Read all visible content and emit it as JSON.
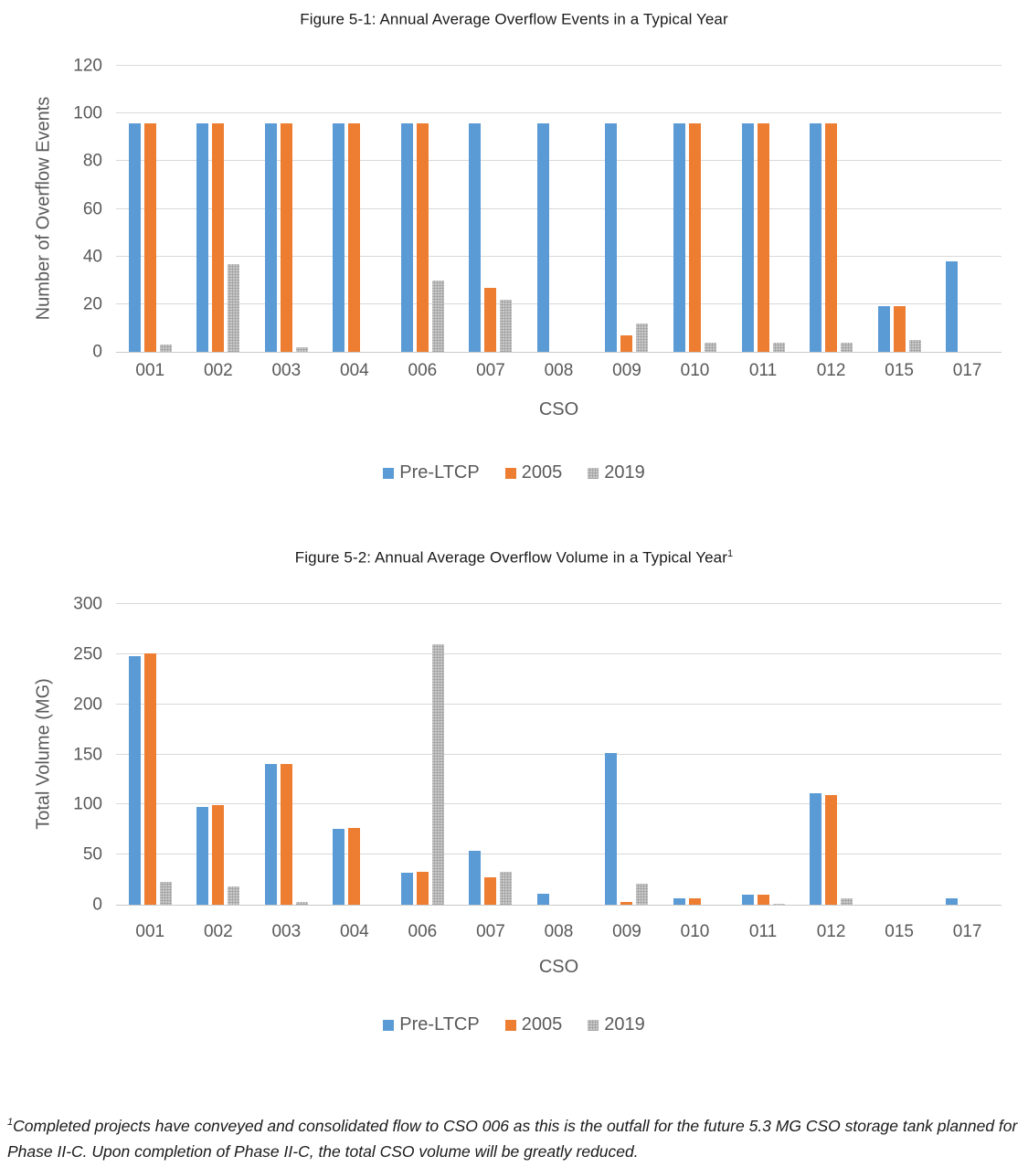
{
  "colors": {
    "pre_ltcp_blue": "#5b9bd5",
    "year2005_orange": "#ed7d31",
    "year2019_gray": "#a6a6a6",
    "gridline_gray": "#d9d9d9",
    "axis_text_gray": "#595959"
  },
  "chart_data": [
    {
      "type": "bar",
      "title": "Figure 5-1: Annual Average Overflow Events in a Typical Year",
      "title_superscript": "",
      "xlabel": "CSO",
      "ylabel": "Number of Overflow Events",
      "ylim": [
        0,
        120
      ],
      "yticks": [
        0,
        20,
        40,
        60,
        80,
        100,
        120
      ],
      "grid": true,
      "legend_position": "bottom",
      "categories": [
        "001",
        "002",
        "003",
        "004",
        "006",
        "007",
        "008",
        "009",
        "010",
        "011",
        "012",
        "015",
        "017"
      ],
      "series": [
        {
          "name": "Pre-LTCP",
          "color": "#5b9bd5",
          "pattern": false,
          "values": [
            96,
            96,
            96,
            96,
            96,
            96,
            96,
            96,
            96,
            96,
            96,
            19,
            38
          ]
        },
        {
          "name": "2005",
          "color": "#ed7d31",
          "pattern": false,
          "values": [
            96,
            96,
            96,
            96,
            96,
            27,
            0,
            7,
            96,
            96,
            96,
            19,
            0
          ]
        },
        {
          "name": "2019",
          "color": "#a6a6a6",
          "pattern": true,
          "values": [
            3,
            37,
            2,
            0,
            30,
            22,
            0,
            12,
            4,
            4,
            4,
            5,
            0
          ]
        }
      ]
    },
    {
      "type": "bar",
      "title": "Figure 5-2: Annual Average Overflow Volume in a Typical Year",
      "title_superscript": "1",
      "xlabel": "CSO",
      "ylabel": "Total Volume (MG)",
      "ylim": [
        0,
        300
      ],
      "yticks": [
        0,
        50,
        100,
        150,
        200,
        250,
        300
      ],
      "grid": true,
      "legend_position": "bottom",
      "categories": [
        "001",
        "002",
        "003",
        "004",
        "006",
        "007",
        "008",
        "009",
        "010",
        "011",
        "012",
        "015",
        "017"
      ],
      "series": [
        {
          "name": "Pre-LTCP",
          "color": "#5b9bd5",
          "pattern": false,
          "values": [
            248,
            98,
            140,
            76,
            32,
            54,
            11,
            151,
            6,
            10,
            111,
            0,
            6
          ]
        },
        {
          "name": "2005",
          "color": "#ed7d31",
          "pattern": false,
          "values": [
            251,
            99,
            140,
            77,
            33,
            27,
            0,
            3,
            6,
            10,
            109,
            0,
            0
          ]
        },
        {
          "name": "2019",
          "color": "#a6a6a6",
          "pattern": true,
          "values": [
            23,
            18,
            3,
            0,
            260,
            33,
            0,
            21,
            0,
            1,
            6,
            0,
            0
          ]
        }
      ]
    }
  ],
  "footnote": {
    "superscript": "1",
    "text": "Completed projects have conveyed and consolidated flow to CSO 006 as this is the outfall for the future 5.3 MG CSO storage tank planned for Phase II-C. Upon completion of Phase II-C, the total CSO volume will be greatly reduced."
  }
}
